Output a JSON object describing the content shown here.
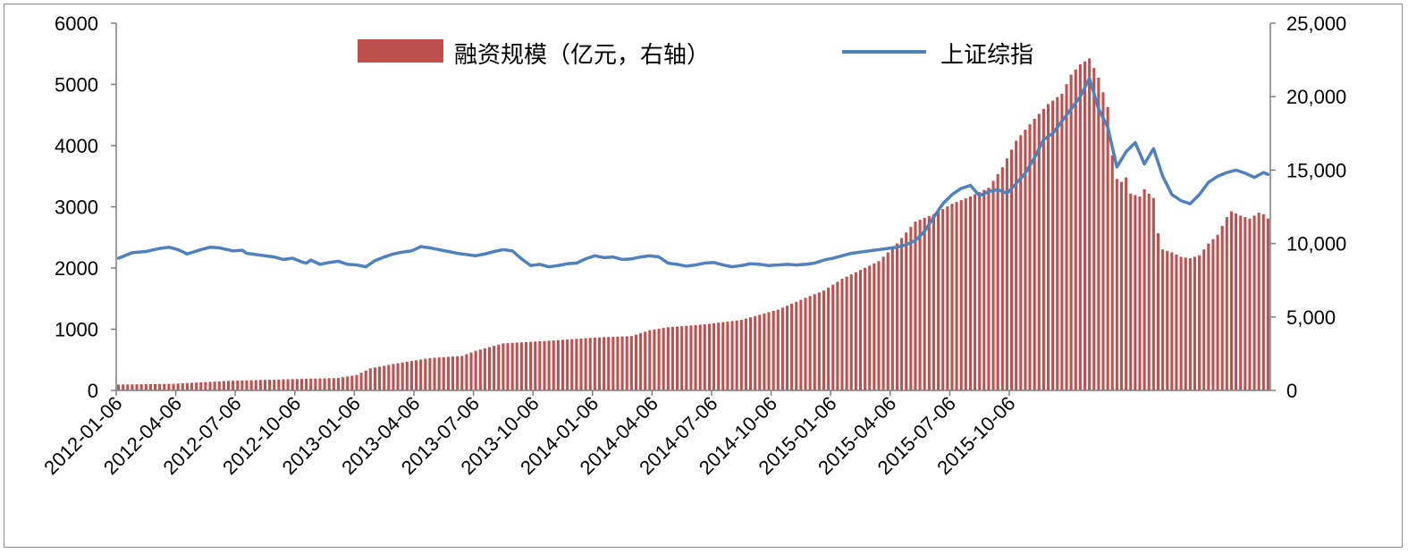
{
  "chart_data": {
    "type": "bar+line",
    "title": "",
    "xlabel": "",
    "legend": {
      "placement": "top-center",
      "entries": [
        "融资规模（亿元，右轴）",
        "上证综指"
      ]
    },
    "colors": {
      "bar": "#c0504d",
      "line": "#4f81bd",
      "axis": "#7f7f7f"
    },
    "left_axis": {
      "min": 0,
      "max": 6000,
      "ticks": [
        0,
        1000,
        2000,
        3000,
        4000,
        5000,
        6000
      ],
      "tick_labels": [
        "0",
        "1000",
        "2000",
        "3000",
        "4000",
        "5000",
        "6000"
      ]
    },
    "right_axis": {
      "min": 0,
      "max": 25000,
      "ticks": [
        0,
        5000,
        10000,
        15000,
        20000,
        25000
      ],
      "tick_labels": [
        "0",
        "5,000",
        "10,000",
        "15,000",
        "20,000",
        "25,000"
      ]
    },
    "x_tick_labels": [
      "2012-01-06",
      "2012-04-06",
      "2012-07-06",
      "2012-10-06",
      "2013-01-06",
      "2013-04-06",
      "2013-07-06",
      "2013-10-06",
      "2014-01-06",
      "2014-04-06",
      "2014-07-06",
      "2014-10-06",
      "2015-01-06",
      "2015-04-06",
      "2015-07-06",
      "2015-10-06"
    ],
    "series": [
      {
        "name": "融资规模（亿元，右轴）",
        "type": "bar",
        "axis": "right",
        "keypoints": [
          [
            0,
            400
          ],
          [
            12,
            450
          ],
          [
            24,
            650
          ],
          [
            36,
            750
          ],
          [
            48,
            850
          ],
          [
            52,
            1050
          ],
          [
            55,
            1500
          ],
          [
            60,
            1800
          ],
          [
            68,
            2200
          ],
          [
            75,
            2350
          ],
          [
            78,
            2700
          ],
          [
            84,
            3200
          ],
          [
            95,
            3400
          ],
          [
            104,
            3600
          ],
          [
            112,
            3700
          ],
          [
            116,
            4100
          ],
          [
            120,
            4300
          ],
          [
            128,
            4500
          ],
          [
            136,
            4800
          ],
          [
            144,
            5500
          ],
          [
            150,
            6300
          ],
          [
            154,
            6800
          ],
          [
            158,
            7600
          ],
          [
            162,
            8200
          ],
          [
            166,
            8800
          ],
          [
            170,
            10000
          ],
          [
            174,
            11500
          ],
          [
            178,
            12000
          ],
          [
            182,
            12700
          ],
          [
            186,
            13200
          ],
          [
            190,
            13800
          ],
          [
            193,
            15200
          ],
          [
            196,
            17000
          ],
          [
            200,
            18500
          ],
          [
            203,
            19500
          ],
          [
            206,
            20200
          ],
          [
            208,
            21500
          ],
          [
            210,
            22200
          ],
          [
            212,
            22600
          ],
          [
            214,
            21300
          ],
          [
            216,
            19300
          ],
          [
            217,
            16000
          ],
          [
            218,
            14400
          ],
          [
            219,
            14200
          ],
          [
            220,
            14500
          ],
          [
            221,
            13400
          ],
          [
            223,
            13200
          ],
          [
            224,
            13700
          ],
          [
            225,
            13400
          ],
          [
            226,
            13100
          ],
          [
            227,
            10700
          ],
          [
            228,
            9600
          ],
          [
            230,
            9400
          ],
          [
            232,
            9100
          ],
          [
            234,
            9000
          ],
          [
            236,
            9200
          ],
          [
            238,
            10000
          ],
          [
            240,
            10600
          ],
          [
            242,
            11800
          ],
          [
            243,
            12200
          ],
          [
            245,
            11900
          ],
          [
            247,
            11700
          ],
          [
            249,
            12100
          ],
          [
            250,
            12000
          ],
          [
            251,
            11700
          ]
        ]
      },
      {
        "name": "上证综指",
        "type": "line",
        "axis": "left",
        "keypoints": [
          [
            0,
            2160
          ],
          [
            3,
            2250
          ],
          [
            6,
            2270
          ],
          [
            9,
            2320
          ],
          [
            11,
            2340
          ],
          [
            13,
            2300
          ],
          [
            15,
            2230
          ],
          [
            18,
            2300
          ],
          [
            20,
            2340
          ],
          [
            22,
            2330
          ],
          [
            25,
            2280
          ],
          [
            27,
            2290
          ],
          [
            28,
            2240
          ],
          [
            31,
            2210
          ],
          [
            34,
            2180
          ],
          [
            36,
            2140
          ],
          [
            38,
            2160
          ],
          [
            40,
            2100
          ],
          [
            41,
            2080
          ],
          [
            42,
            2130
          ],
          [
            44,
            2060
          ],
          [
            46,
            2090
          ],
          [
            48,
            2110
          ],
          [
            50,
            2060
          ],
          [
            52,
            2050
          ],
          [
            54,
            2020
          ],
          [
            56,
            2120
          ],
          [
            58,
            2180
          ],
          [
            60,
            2230
          ],
          [
            62,
            2260
          ],
          [
            64,
            2280
          ],
          [
            66,
            2350
          ],
          [
            68,
            2330
          ],
          [
            70,
            2300
          ],
          [
            72,
            2270
          ],
          [
            74,
            2240
          ],
          [
            76,
            2220
          ],
          [
            78,
            2200
          ],
          [
            80,
            2230
          ],
          [
            82,
            2270
          ],
          [
            84,
            2300
          ],
          [
            86,
            2280
          ],
          [
            88,
            2150
          ],
          [
            90,
            2040
          ],
          [
            92,
            2060
          ],
          [
            94,
            2020
          ],
          [
            96,
            2040
          ],
          [
            98,
            2070
          ],
          [
            100,
            2080
          ],
          [
            102,
            2150
          ],
          [
            104,
            2200
          ],
          [
            106,
            2170
          ],
          [
            108,
            2180
          ],
          [
            110,
            2140
          ],
          [
            112,
            2150
          ],
          [
            114,
            2180
          ],
          [
            116,
            2200
          ],
          [
            118,
            2180
          ],
          [
            120,
            2080
          ],
          [
            122,
            2060
          ],
          [
            124,
            2030
          ],
          [
            126,
            2050
          ],
          [
            128,
            2080
          ],
          [
            130,
            2090
          ],
          [
            132,
            2050
          ],
          [
            134,
            2020
          ],
          [
            136,
            2040
          ],
          [
            138,
            2070
          ],
          [
            140,
            2060
          ],
          [
            142,
            2040
          ],
          [
            144,
            2050
          ],
          [
            146,
            2060
          ],
          [
            148,
            2050
          ],
          [
            150,
            2060
          ],
          [
            152,
            2080
          ],
          [
            154,
            2130
          ],
          [
            156,
            2160
          ],
          [
            158,
            2200
          ],
          [
            160,
            2240
          ],
          [
            162,
            2260
          ],
          [
            164,
            2280
          ],
          [
            166,
            2300
          ],
          [
            168,
            2320
          ],
          [
            170,
            2340
          ],
          [
            172,
            2380
          ],
          [
            174,
            2450
          ],
          [
            176,
            2600
          ],
          [
            178,
            2830
          ],
          [
            180,
            3050
          ],
          [
            182,
            3200
          ],
          [
            184,
            3300
          ],
          [
            186,
            3350
          ],
          [
            188,
            3180
          ],
          [
            190,
            3250
          ],
          [
            192,
            3280
          ],
          [
            194,
            3220
          ],
          [
            196,
            3380
          ],
          [
            198,
            3550
          ],
          [
            200,
            3800
          ],
          [
            202,
            4100
          ],
          [
            204,
            4200
          ],
          [
            206,
            4400
          ],
          [
            208,
            4600
          ],
          [
            210,
            4800
          ],
          [
            212,
            5100
          ],
          [
            214,
            4600
          ],
          [
            216,
            4300
          ],
          [
            218,
            3650
          ],
          [
            220,
            3900
          ],
          [
            222,
            4050
          ],
          [
            224,
            3700
          ],
          [
            226,
            3950
          ],
          [
            228,
            3500
          ],
          [
            230,
            3200
          ],
          [
            232,
            3100
          ],
          [
            234,
            3050
          ],
          [
            236,
            3200
          ],
          [
            238,
            3400
          ],
          [
            240,
            3500
          ],
          [
            242,
            3560
          ],
          [
            244,
            3600
          ],
          [
            246,
            3550
          ],
          [
            248,
            3480
          ],
          [
            250,
            3560
          ],
          [
            251,
            3530
          ]
        ]
      }
    ]
  }
}
